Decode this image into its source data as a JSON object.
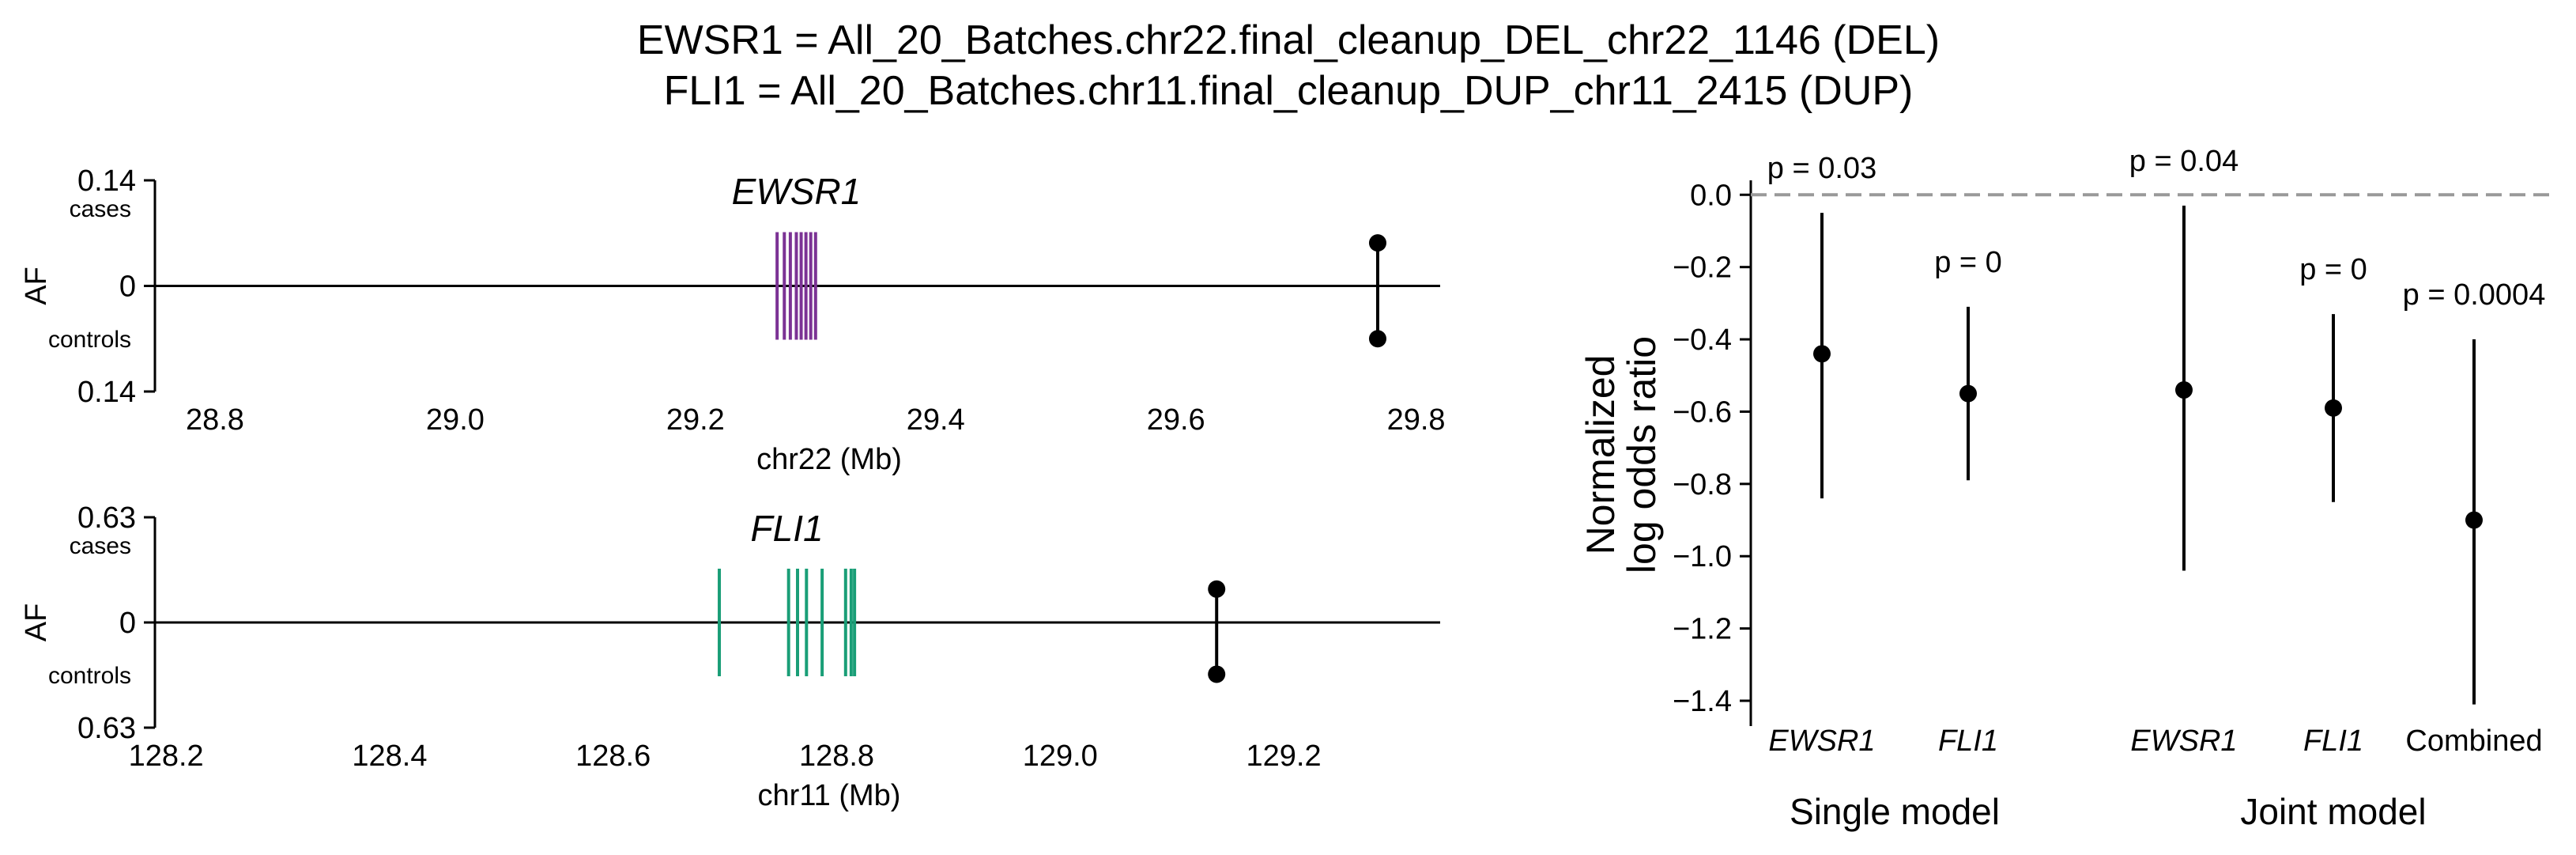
{
  "title": {
    "line1": "EWSR1 = All_20_Batches.chr22.final_cleanup_DEL_chr22_1146 (DEL)",
    "line2": "FLI1 = All_20_Batches.chr11.final_cleanup_DUP_chr11_2415 (DUP)"
  },
  "colors": {
    "ewsr1": "#7b3294",
    "fli1": "#1a9e77",
    "null_line": "#999999",
    "ink": "#000000"
  },
  "chart_data": [
    {
      "type": "scatter",
      "panel": "top-left",
      "gene": "EWSR1",
      "xlabel": "chr22 (Mb)",
      "ylabel": "AF",
      "xticks": [
        "28.8",
        "29.0",
        "29.2",
        "29.4",
        "29.6",
        "29.8"
      ],
      "xlim": [
        28.75,
        29.82
      ],
      "yticks": [
        "0.14",
        "0",
        "0.14"
      ],
      "ytick_small": [
        "cases",
        "controls"
      ],
      "ylim": [
        -0.14,
        0.14
      ],
      "gene_exons_mb": [
        29.268,
        29.274,
        29.279,
        29.284,
        29.288,
        29.292,
        29.296,
        29.3
      ],
      "variant": {
        "x": 29.768,
        "cases_af": 0.057,
        "controls_af": 0.07
      }
    },
    {
      "type": "scatter",
      "panel": "bottom-left",
      "gene": "FLI1",
      "xlabel": "chr11 (Mb)",
      "ylabel": "AF",
      "xticks": [
        "128.2",
        "128.4",
        "128.6",
        "128.8",
        "129.0",
        "129.2"
      ],
      "xlim": [
        128.19,
        129.34
      ],
      "yticks": [
        "0.63",
        "0",
        "0.63"
      ],
      "ytick_small": [
        "cases",
        "controls"
      ],
      "ylim": [
        -0.63,
        0.63
      ],
      "gene_exons_mb": [
        128.695,
        128.757,
        128.765,
        128.773,
        128.787,
        128.808,
        128.813,
        128.816
      ],
      "variant": {
        "x": 129.14,
        "cases_af": 0.2,
        "controls_af": 0.31
      }
    },
    {
      "type": "scatter",
      "panel": "right",
      "ylabel": "Normalized log odds ratio",
      "ylim": [
        -1.47,
        0.04
      ],
      "yticks": [
        "0.0",
        "−0.2",
        "−0.4",
        "−0.6",
        "−0.8",
        "−1.0",
        "−1.2",
        "−1.4"
      ],
      "ytick_values": [
        0.0,
        -0.2,
        -0.4,
        -0.6,
        -0.8,
        -1.0,
        -1.2,
        -1.4
      ],
      "null_line_y": 0,
      "groups": [
        {
          "label": "Single model",
          "items": [
            "EWSR1",
            "FLI1"
          ]
        },
        {
          "label": "Joint model",
          "items": [
            "EWSR1",
            "FLI1",
            "Combined"
          ]
        }
      ],
      "points": [
        {
          "label": "EWSR1",
          "y": -0.44,
          "lo": -0.84,
          "hi": -0.05,
          "p": "p = 0.03"
        },
        {
          "label": "FLI1",
          "y": -0.55,
          "lo": -0.79,
          "hi": -0.31,
          "p": "p = 0"
        },
        {
          "label": "EWSR1",
          "y": -0.54,
          "lo": -1.04,
          "hi": -0.03,
          "p": "p = 0.04"
        },
        {
          "label": "FLI1",
          "y": -0.59,
          "lo": -0.85,
          "hi": -0.33,
          "p": "p = 0"
        },
        {
          "label": "Combined",
          "y": -0.9,
          "lo": -1.41,
          "hi": -0.4,
          "p": "p = 0.0004"
        }
      ]
    }
  ]
}
